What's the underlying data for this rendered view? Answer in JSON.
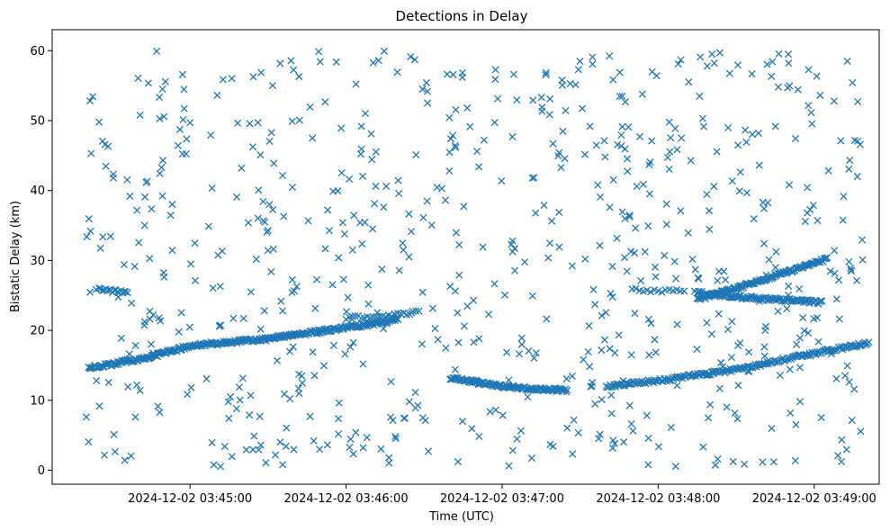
{
  "chart_data": {
    "type": "scatter",
    "title": "Detections in Delay",
    "xlabel": "Time (UTC)",
    "ylabel": "Bistatic Delay (km)",
    "marker": "x",
    "color": "#1f77b4",
    "grid": false,
    "legend": "none",
    "xlim": [
      "2024-12-02 03:44:07",
      "2024-12-02 03:49:25"
    ],
    "ylim": [
      -2,
      63
    ],
    "xticks": [
      {
        "t": "2024-12-02 03:45:00",
        "label": "2024-12-02 03:45:00"
      },
      {
        "t": "2024-12-02 03:46:00",
        "label": "2024-12-02 03:46:00"
      },
      {
        "t": "2024-12-02 03:47:00",
        "label": "2024-12-02 03:47:00"
      },
      {
        "t": "2024-12-02 03:48:00",
        "label": "2024-12-02 03:48:00"
      },
      {
        "t": "2024-12-02 03:49:00",
        "label": "2024-12-02 03:49:00"
      }
    ],
    "yticks": [
      0,
      10,
      20,
      30,
      40,
      50,
      60
    ],
    "tracks": [
      {
        "points": [
          [
            "2024-12-02 03:44:21",
            14.6
          ],
          [
            "2024-12-02 03:44:45",
            16.2
          ],
          [
            "2024-12-02 03:45:00",
            17.8
          ],
          [
            "2024-12-02 03:45:30",
            18.8
          ],
          [
            "2024-12-02 03:46:00",
            20.4
          ],
          [
            "2024-12-02 03:46:15",
            21.2
          ],
          [
            "2024-12-02 03:46:20",
            21.6
          ]
        ],
        "n": 320
      },
      {
        "points": [
          [
            "2024-12-02 03:46:40",
            13.2
          ],
          [
            "2024-12-02 03:47:00",
            12.0
          ],
          [
            "2024-12-02 03:47:15",
            11.6
          ],
          [
            "2024-12-02 03:47:25",
            11.4
          ]
        ],
        "n": 120
      },
      {
        "points": [
          [
            "2024-12-02 03:47:40",
            12.0
          ],
          [
            "2024-12-02 03:48:00",
            12.8
          ],
          [
            "2024-12-02 03:48:30",
            14.4
          ],
          [
            "2024-12-02 03:49:00",
            16.7
          ],
          [
            "2024-12-02 03:49:21",
            18.2
          ]
        ],
        "n": 200
      },
      {
        "points": [
          [
            "2024-12-02 03:48:15",
            24.4
          ],
          [
            "2024-12-02 03:48:30",
            26.0
          ],
          [
            "2024-12-02 03:48:45",
            27.8
          ],
          [
            "2024-12-02 03:49:00",
            29.6
          ],
          [
            "2024-12-02 03:49:05",
            30.2
          ]
        ],
        "n": 130
      },
      {
        "points": [
          [
            "2024-12-02 03:48:15",
            25.4
          ],
          [
            "2024-12-02 03:48:30",
            24.8
          ],
          [
            "2024-12-02 03:48:50",
            24.3
          ],
          [
            "2024-12-02 03:49:03",
            24.0
          ]
        ],
        "n": 110
      },
      {
        "points": [
          [
            "2024-12-02 03:44:25",
            25.8
          ],
          [
            "2024-12-02 03:44:36",
            25.5
          ]
        ],
        "n": 18
      },
      {
        "points": [
          [
            "2024-12-02 03:46:00",
            21.7
          ],
          [
            "2024-12-02 03:46:28",
            22.6
          ]
        ],
        "n": 25
      },
      {
        "points": [
          [
            "2024-12-02 03:47:50",
            25.8
          ],
          [
            "2024-12-02 03:48:10",
            25.6
          ]
        ],
        "n": 15
      }
    ],
    "noise_count": 720,
    "noise_range": {
      "x": [
        "2024-12-02 03:44:20",
        "2024-12-02 03:49:20"
      ],
      "y": [
        0.5,
        60
      ]
    }
  }
}
